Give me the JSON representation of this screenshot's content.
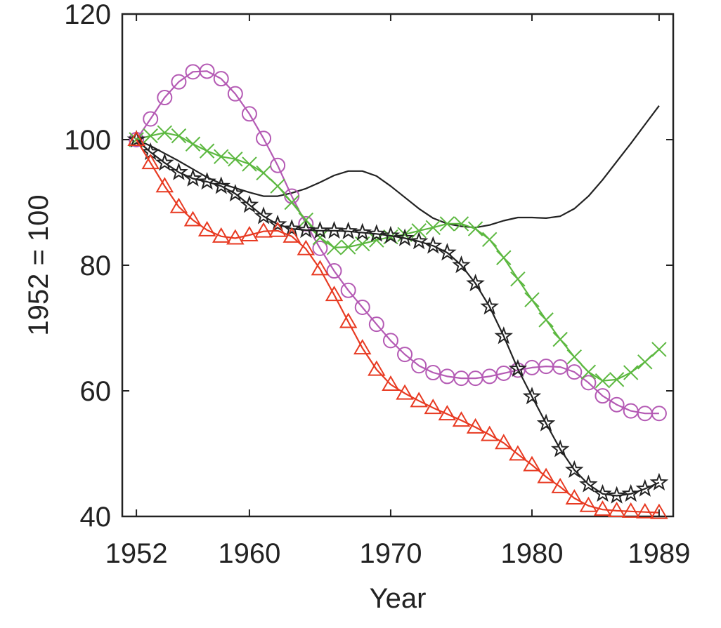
{
  "chart_data": {
    "type": "line",
    "title": "",
    "xlabel": "Year",
    "ylabel": "1952 = 100",
    "xlim": [
      1951,
      1990
    ],
    "ylim": [
      40,
      120
    ],
    "xticks": [
      1952,
      1960,
      1970,
      1980,
      1989
    ],
    "yticks": [
      40,
      60,
      80,
      100,
      120
    ],
    "grid": false,
    "x": [
      1952,
      1953,
      1954,
      1955,
      1956,
      1957,
      1958,
      1959,
      1960,
      1961,
      1962,
      1963,
      1964,
      1965,
      1966,
      1967,
      1968,
      1969,
      1970,
      1971,
      1972,
      1973,
      1974,
      1975,
      1976,
      1977,
      1978,
      1979,
      1980,
      1981,
      1982,
      1983,
      1984,
      1985,
      1986,
      1987,
      1988,
      1989
    ],
    "series": [
      {
        "color": "#222222",
        "marker": "none",
        "values": [
          100,
          99.0,
          97.8,
          96.6,
          95.3,
          94.0,
          93.0,
          92.3,
          91.6,
          91.0,
          91.0,
          91.5,
          92.2,
          93.2,
          94.3,
          95.0,
          95.0,
          94.2,
          92.6,
          90.8,
          89.0,
          87.5,
          86.6,
          86.2,
          86.0,
          86.4,
          87.1,
          87.6,
          87.6,
          87.5,
          87.8,
          89.0,
          91.0,
          93.6,
          96.5,
          99.4,
          102.4,
          105.4
        ]
      },
      {
        "color": "#b45ab4",
        "marker": "circle",
        "values": [
          100,
          103.3,
          106.7,
          109.2,
          110.8,
          110.9,
          109.7,
          107.3,
          104.1,
          100.2,
          95.9,
          91.0,
          86.6,
          82.7,
          79.1,
          76.0,
          73.3,
          70.6,
          68.0,
          65.8,
          64.0,
          62.9,
          62.3,
          62.0,
          62.0,
          62.3,
          62.8,
          63.3,
          63.7,
          63.9,
          63.8,
          63.0,
          61.3,
          59.2,
          57.8,
          56.8,
          56.4,
          56.4
        ]
      },
      {
        "color": "#5cb840",
        "marker": "x",
        "values": [
          100,
          100.6,
          101.1,
          100.6,
          99.3,
          98.2,
          97.3,
          96.9,
          96.1,
          94.7,
          92.6,
          90.0,
          87.2,
          84.4,
          82.8,
          82.9,
          83.4,
          84.0,
          84.5,
          84.9,
          85.5,
          86.0,
          86.6,
          86.6,
          85.8,
          84.1,
          81.2,
          77.8,
          74.5,
          71.3,
          68.2,
          65.4,
          63.0,
          61.6,
          61.8,
          62.9,
          64.6,
          66.6
        ]
      },
      {
        "color": "#222222",
        "marker": "star",
        "values": [
          100,
          98.0,
          96.3,
          94.8,
          93.8,
          93.3,
          92.6,
          91.4,
          89.6,
          87.8,
          86.5,
          85.8,
          85.6,
          85.5,
          85.5,
          85.4,
          85.2,
          85.0,
          84.7,
          84.3,
          83.8,
          83.1,
          82.0,
          80.0,
          77.1,
          73.4,
          68.7,
          63.5,
          59.1,
          54.8,
          50.7,
          47.4,
          45.1,
          43.6,
          43.3,
          43.6,
          44.4,
          45.4
        ]
      },
      {
        "color": "#e83a22",
        "marker": "triangle",
        "values": [
          100,
          96.3,
          92.6,
          89.3,
          87.2,
          85.6,
          84.6,
          84.3,
          84.8,
          85.4,
          85.5,
          84.6,
          82.6,
          79.4,
          75.3,
          71.0,
          66.8,
          63.4,
          61.0,
          59.6,
          58.4,
          57.3,
          56.3,
          55.3,
          54.2,
          53.0,
          51.7,
          49.9,
          48.2,
          46.3,
          44.7,
          42.9,
          41.7,
          41.1,
          40.9,
          40.8,
          40.7,
          40.6
        ]
      }
    ]
  }
}
